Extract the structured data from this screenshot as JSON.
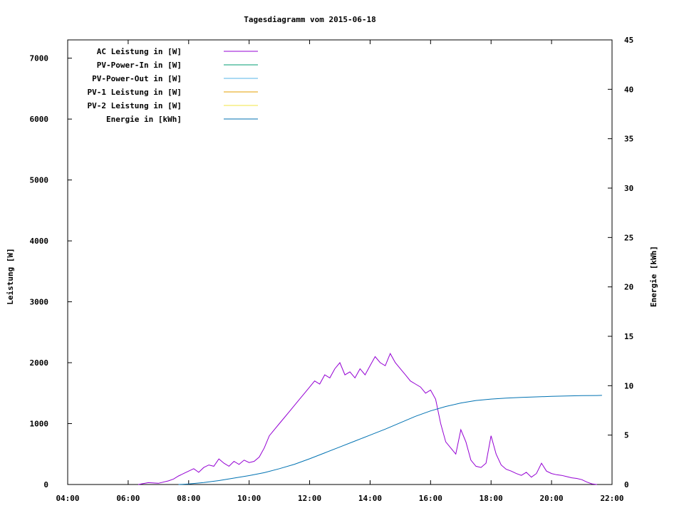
{
  "chart_data": {
    "type": "line",
    "title": "Tagesdiagramm vom 2015-06-18",
    "xlabel": "",
    "ylabel": "Leistung [W]",
    "y2label": "Energie [kWh]",
    "xlim": [
      "04:00",
      "22:00"
    ],
    "ylim": [
      0,
      7300
    ],
    "y2lim": [
      0,
      45
    ],
    "x_ticks": [
      "04:00",
      "06:00",
      "08:00",
      "10:00",
      "12:00",
      "14:00",
      "16:00",
      "18:00",
      "20:00",
      "22:00"
    ],
    "y_ticks": [
      "0",
      "1000",
      "2000",
      "3000",
      "4000",
      "5000",
      "6000",
      "7000"
    ],
    "y2_ticks": [
      "0",
      "5",
      "10",
      "15",
      "20",
      "25",
      "30",
      "35",
      "40",
      "45"
    ],
    "legend_position": "top-left",
    "grid": false,
    "series": [
      {
        "name": "AC Leistung in [W]",
        "color": "#9400d3",
        "axis": "left",
        "x": [
          "06:20",
          "06:40",
          "07:00",
          "07:20",
          "07:30",
          "07:40",
          "07:50",
          "08:00",
          "08:10",
          "08:20",
          "08:30",
          "08:40",
          "08:50",
          "09:00",
          "09:10",
          "09:20",
          "09:30",
          "09:40",
          "09:50",
          "10:00",
          "10:10",
          "10:20",
          "10:30",
          "10:40",
          "10:50",
          "11:00",
          "11:10",
          "11:20",
          "11:30",
          "11:40",
          "11:50",
          "12:00",
          "12:10",
          "12:20",
          "12:30",
          "12:40",
          "12:50",
          "13:00",
          "13:10",
          "13:20",
          "13:30",
          "13:40",
          "13:50",
          "14:00",
          "14:10",
          "14:20",
          "14:30",
          "14:40",
          "14:50",
          "15:00",
          "15:10",
          "15:20",
          "15:30",
          "15:40",
          "15:50",
          "16:00",
          "16:10",
          "16:20",
          "16:30",
          "16:40",
          "16:50",
          "17:00",
          "17:10",
          "17:20",
          "17:30",
          "17:40",
          "17:50",
          "18:00",
          "18:10",
          "18:20",
          "18:30",
          "18:40",
          "18:50",
          "19:00",
          "19:10",
          "19:20",
          "19:30",
          "19:40",
          "19:50",
          "20:00",
          "20:10",
          "20:20",
          "20:30",
          "20:40",
          "20:50",
          "21:00",
          "21:10",
          "21:20",
          "21:30"
        ],
        "values": [
          0,
          30,
          20,
          60,
          90,
          140,
          180,
          220,
          260,
          200,
          280,
          320,
          300,
          420,
          350,
          300,
          380,
          330,
          400,
          360,
          380,
          450,
          600,
          800,
          900,
          1000,
          1100,
          1200,
          1300,
          1400,
          1500,
          1600,
          1700,
          1650,
          1800,
          1750,
          1900,
          2000,
          1800,
          1850,
          1750,
          1900,
          1800,
          1950,
          2100,
          2000,
          1950,
          2150,
          2000,
          1900,
          1800,
          1700,
          1650,
          1600,
          1500,
          1550,
          1400,
          1000,
          700,
          600,
          500,
          900,
          700,
          400,
          300,
          280,
          350,
          800,
          500,
          320,
          250,
          220,
          180,
          150,
          200,
          120,
          180,
          350,
          220,
          180,
          160,
          150,
          130,
          110,
          100,
          80,
          40,
          10,
          0
        ]
      },
      {
        "name": "PV-Power-In in [W]",
        "color": "#009e73",
        "axis": "left",
        "values": []
      },
      {
        "name": "PV-Power-Out in [W]",
        "color": "#56b4e9",
        "axis": "left",
        "values": []
      },
      {
        "name": "PV-1 Leistung in [W]",
        "color": "#e69f00",
        "axis": "left",
        "values": []
      },
      {
        "name": "PV-2 Leistung in [W]",
        "color": "#f0e442",
        "axis": "left",
        "values": []
      },
      {
        "name": "Energie in [kWh]",
        "color": "#0072b2",
        "axis": "right",
        "x": [
          "07:40",
          "08:00",
          "08:30",
          "09:00",
          "09:30",
          "10:00",
          "10:30",
          "11:00",
          "11:30",
          "12:00",
          "12:30",
          "13:00",
          "13:30",
          "14:00",
          "14:30",
          "15:00",
          "15:30",
          "16:00",
          "16:30",
          "17:00",
          "17:30",
          "18:00",
          "18:30",
          "19:00",
          "19:30",
          "20:00",
          "20:30",
          "21:00",
          "21:30",
          "21:40"
        ],
        "values": [
          0,
          0.05,
          0.2,
          0.4,
          0.65,
          0.9,
          1.2,
          1.6,
          2.05,
          2.6,
          3.2,
          3.8,
          4.4,
          5.0,
          5.6,
          6.25,
          6.9,
          7.45,
          7.9,
          8.25,
          8.5,
          8.65,
          8.75,
          8.82,
          8.87,
          8.92,
          8.96,
          8.99,
          9.01,
          9.02
        ]
      }
    ]
  }
}
